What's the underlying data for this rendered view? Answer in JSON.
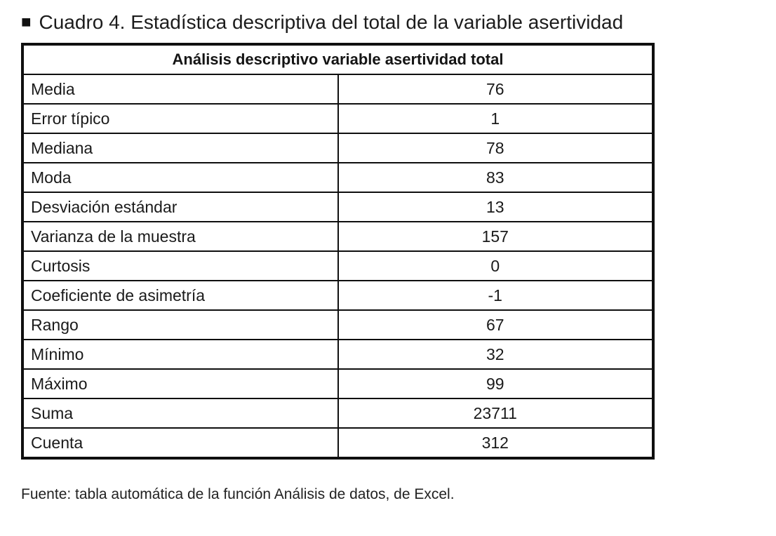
{
  "page": {
    "caption": "Cuadro 4. Estadística descriptiva del total de la variable asertividad",
    "source_note": "Fuente: tabla automática de la función Análisis de datos, de Excel."
  },
  "icons": {
    "title_bullet": "■"
  },
  "colors": {
    "background": "#ffffff",
    "text": "#1a1a1a",
    "border": "#0f0f0f"
  },
  "table": {
    "header": "Análisis descriptivo variable asertividad total",
    "rows": [
      {
        "label": "Media",
        "value": "76"
      },
      {
        "label": "Error típico",
        "value": "1"
      },
      {
        "label": "Mediana",
        "value": "78"
      },
      {
        "label": "Moda",
        "value": "83"
      },
      {
        "label": "Desviación estándar",
        "value": "13"
      },
      {
        "label": "Varianza de la muestra",
        "value": "157"
      },
      {
        "label": "Curtosis",
        "value": "0"
      },
      {
        "label": "Coeficiente de asimetría",
        "value": "-1"
      },
      {
        "label": "Rango",
        "value": "67"
      },
      {
        "label": "Mínimo",
        "value": "32"
      },
      {
        "label": "Máximo",
        "value": "99"
      },
      {
        "label": "Suma",
        "value": "23711"
      },
      {
        "label": "Cuenta",
        "value": "312"
      }
    ]
  }
}
